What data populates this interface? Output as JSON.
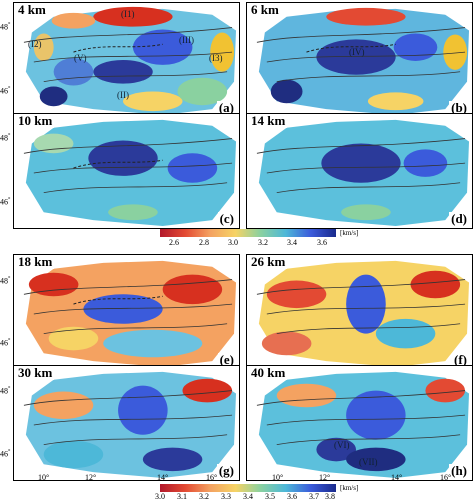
{
  "panels_top": [
    {
      "depth": "4 km",
      "label": "(a)"
    },
    {
      "depth": "6 km",
      "label": "(b)"
    },
    {
      "depth": "10 km",
      "label": "(c)"
    },
    {
      "depth": "14 km",
      "label": "(d)"
    }
  ],
  "panels_bottom": [
    {
      "depth": "18 km",
      "label": "(e)"
    },
    {
      "depth": "26 km",
      "label": "(f)"
    },
    {
      "depth": "30 km",
      "label": "(g)"
    },
    {
      "depth": "40 km",
      "label": "(h)"
    }
  ],
  "regions": {
    "I1": "(I1)",
    "I2": "(I2)",
    "I3": "(I3)",
    "II": "(II)",
    "III": "(III)",
    "IV": "(IV)",
    "V": "(V)",
    "VI": "(VI)",
    "VII": "(VII)"
  },
  "lat_labels": {
    "top": "48",
    "bottom": "46",
    "deg": "°"
  },
  "lon_labels": [
    "10°",
    "12°",
    "14°",
    "16°"
  ],
  "colorbar_top": {
    "ticks": [
      "2.6",
      "2.8",
      "3.0",
      "3.2",
      "3.4",
      "3.6"
    ],
    "unit": "[km/s]",
    "range": [
      2.5,
      3.7
    ]
  },
  "colorbar_bottom": {
    "ticks": [
      "3.0",
      "3.1",
      "3.2",
      "3.3",
      "3.4",
      "3.5",
      "3.6",
      "3.7",
      "3.8"
    ],
    "unit": "[km/s]",
    "range": [
      3.0,
      3.8
    ]
  },
  "colors": {
    "low": "#b2182b",
    "mid": "#4db8d8",
    "high": "#1a2a8c"
  }
}
